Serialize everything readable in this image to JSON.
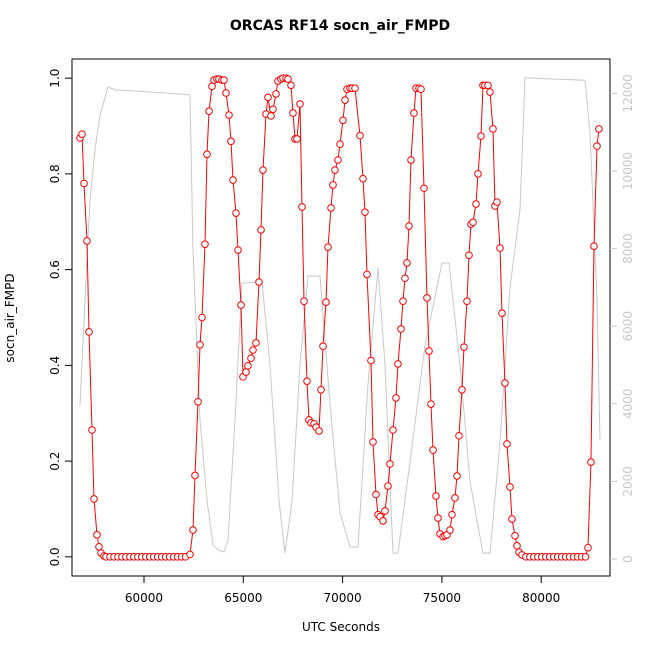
{
  "chart_data": {
    "type": "line",
    "title": "ORCAS RF14 socn_air_FMPD",
    "x_label": "UTC Seconds",
    "y_label": "socn_air_FMPD",
    "xlim": [
      56375,
      83464
    ],
    "xticks": [
      60000,
      65000,
      70000,
      75000,
      80000
    ],
    "ylim": [
      -0.04,
      1.04
    ],
    "yticks": [
      {
        "value": 0,
        "label": "0.0"
      },
      {
        "value": 0.2,
        "label": "0.2"
      },
      {
        "value": 0.4,
        "label": "0.4"
      },
      {
        "value": 0.6,
        "label": "0.6"
      },
      {
        "value": 0.8,
        "label": "0.8"
      },
      {
        "value": 1,
        "label": "1.0"
      }
    ],
    "y2lim": [
      -438,
      12886
    ],
    "y2ticks": [
      0,
      2000,
      4000,
      6000,
      8000,
      10000,
      12000
    ],
    "series": [
      {
        "name": "socn_air_FMPD",
        "color": "#ff0000",
        "marker": "circle",
        "x": [
          56778,
          56878,
          56979,
          57130,
          57231,
          57382,
          57483,
          57633,
          57734,
          57835,
          57986,
          58087,
          58290,
          58490,
          58690,
          58890,
          59090,
          59290,
          59490,
          59690,
          59890,
          60090,
          60290,
          60490,
          60690,
          60890,
          61090,
          61290,
          61490,
          61690,
          61890,
          62090,
          62316,
          62467,
          62568,
          62719,
          62820,
          62920,
          63071,
          63172,
          63273,
          63424,
          63525,
          63676,
          63776,
          63927,
          64028,
          64129,
          64280,
          64381,
          64481,
          64632,
          64733,
          64884,
          64985,
          65136,
          65236,
          65388,
          65488,
          65639,
          65790,
          65891,
          65992,
          66143,
          66244,
          66395,
          66495,
          66647,
          66747,
          66898,
          66999,
          67150,
          67251,
          67402,
          67502,
          67603,
          67704,
          67855,
          67956,
          68057,
          68207,
          68308,
          68409,
          68560,
          68661,
          68812,
          68912,
          69013,
          69164,
          69265,
          69416,
          69517,
          69617,
          69768,
          69869,
          70020,
          70121,
          70222,
          70372,
          70473,
          70624,
          70876,
          71027,
          71127,
          71228,
          71429,
          71530,
          71681,
          71782,
          71883,
          72034,
          72134,
          72285,
          72386,
          72537,
          72688,
          72789,
          72940,
          73041,
          73141,
          73242,
          73343,
          73443,
          73595,
          73695,
          73846,
          73947,
          74098,
          74249,
          74350,
          74450,
          74551,
          74702,
          74803,
          74904,
          75055,
          75155,
          75256,
          75407,
          75508,
          75659,
          75760,
          75860,
          76011,
          76112,
          76263,
          76364,
          76464,
          76565,
          76716,
          76817,
          76968,
          77069,
          77169,
          77320,
          77421,
          77572,
          77673,
          77774,
          77925,
          78025,
          78176,
          78277,
          78428,
          78529,
          78680,
          78781,
          78881,
          79032,
          79230,
          79430,
          79630,
          79830,
          80030,
          80230,
          80430,
          80630,
          80830,
          81030,
          81230,
          81430,
          81630,
          81830,
          82030,
          82230,
          82355,
          82506,
          82658,
          82809,
          82909
        ],
        "values": [
          0.875,
          0.883,
          0.78,
          0.66,
          0.47,
          0.265,
          0.121,
          0.046,
          0.021,
          0.008,
          0.002,
          0,
          0,
          0,
          0,
          0,
          0,
          0,
          0,
          0,
          0,
          0,
          0,
          0,
          0,
          0,
          0,
          0,
          0,
          0,
          0,
          0,
          0.005,
          0.056,
          0.17,
          0.324,
          0.443,
          0.5,
          0.653,
          0.841,
          0.931,
          0.983,
          0.996,
          0.998,
          0.998,
          0.996,
          0.996,
          0.969,
          0.923,
          0.868,
          0.787,
          0.718,
          0.641,
          0.526,
          0.376,
          0.386,
          0.399,
          0.415,
          0.432,
          0.447,
          0.574,
          0.683,
          0.808,
          0.925,
          0.96,
          0.921,
          0.935,
          0.967,
          0.994,
          0.998,
          1,
          1,
          0.998,
          0.985,
          0.927,
          0.873,
          0.873,
          0.946,
          0.731,
          0.534,
          0.367,
          0.286,
          0.28,
          0.278,
          0.271,
          0.263,
          0.349,
          0.44,
          0.532,
          0.647,
          0.729,
          0.777,
          0.808,
          0.829,
          0.862,
          0.912,
          0.954,
          0.977,
          0.979,
          0.979,
          0.979,
          0.88,
          0.79,
          0.72,
          0.59,
          0.41,
          0.24,
          0.13,
          0.088,
          0.084,
          0.075,
          0.096,
          0.148,
          0.194,
          0.265,
          0.332,
          0.403,
          0.476,
          0.534,
          0.582,
          0.614,
          0.691,
          0.829,
          0.927,
          0.979,
          0.979,
          0.977,
          0.77,
          0.541,
          0.43,
          0.319,
          0.223,
          0.127,
          0.081,
          0.048,
          0.042,
          0.044,
          0.046,
          0.056,
          0.088,
          0.123,
          0.169,
          0.253,
          0.349,
          0.438,
          0.534,
          0.63,
          0.695,
          0.699,
          0.737,
          0.8,
          0.879,
          0.985,
          0.985,
          0.985,
          0.971,
          0.894,
          0.733,
          0.741,
          0.645,
          0.509,
          0.363,
          0.236,
          0.146,
          0.079,
          0.044,
          0.023,
          0.01,
          0.004,
          0,
          0,
          0,
          0,
          0,
          0,
          0,
          0,
          0,
          0,
          0,
          0,
          0,
          0,
          0,
          0,
          0.019,
          0.198,
          0.649,
          0.858,
          0.894
        ]
      },
      {
        "color": "#c8c8c8",
        "axis": "y2",
        "x": [
          56778,
          57029,
          57281,
          57533,
          57785,
          58187,
          58540,
          60302,
          62316,
          62467,
          62820,
          63172,
          63474,
          63726,
          64028,
          64229,
          64582,
          64934,
          65941,
          66344,
          66800,
          67099,
          67452,
          67855,
          68257,
          68862,
          69365,
          69869,
          70372,
          70775,
          71278,
          71782,
          72134,
          72537,
          72789,
          73393,
          74148,
          75004,
          75357,
          75911,
          76414,
          77069,
          77421,
          77925,
          78428,
          78932,
          79184,
          82204,
          82456,
          82809,
          82960
        ],
        "values": [
          3970,
          6680,
          9250,
          10540,
          11440,
          12160,
          12090,
          12040,
          11960,
          7960,
          3580,
          1520,
          360,
          230,
          180,
          490,
          3580,
          7110,
          7140,
          5000,
          1500,
          150,
          1500,
          5000,
          7290,
          7290,
          4000,
          1200,
          310,
          310,
          4500,
          7500,
          5000,
          150,
          150,
          2500,
          5500,
          7630,
          7630,
          5000,
          2000,
          150,
          150,
          3000,
          7000,
          9000,
          12400,
          12340,
          11000,
          6680,
          3070
        ]
      }
    ]
  }
}
